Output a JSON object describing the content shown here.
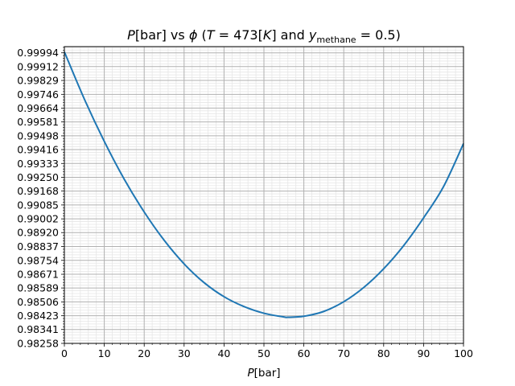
{
  "chart_data": {
    "type": "line",
    "title": "P[bar] vs φ (T = 473[K] and y_methane = 0.5)",
    "title_parts": {
      "p": "P",
      "bar": "[bar] vs ",
      "phi": "ϕ",
      "paren_open": " (",
      "t": "T",
      "t_eq": " = 473[",
      "k": "K",
      "k_close": "] and ",
      "y": "y",
      "y_sub": "methane",
      "y_eq": " = 0.5)"
    },
    "xlabel": "P[bar]",
    "xlabel_parts": {
      "p": "P",
      "unit": "[bar]"
    },
    "ylabel": "",
    "xlim": [
      0,
      100
    ],
    "ylim": [
      0.98258,
      1.00031
    ],
    "x_ticks": [
      0,
      10,
      20,
      30,
      40,
      50,
      60,
      70,
      80,
      90,
      100
    ],
    "y_ticks": [
      "0.99994",
      "0.99912",
      "0.99829",
      "0.99746",
      "0.99664",
      "0.99581",
      "0.99498",
      "0.99416",
      "0.99333",
      "0.99250",
      "0.99168",
      "0.99085",
      "0.99002",
      "0.98920",
      "0.98837",
      "0.98754",
      "0.98671",
      "0.98589",
      "0.98506",
      "0.98423",
      "0.98341",
      "0.98258"
    ],
    "grid": true,
    "series": [
      {
        "color": "#1f77b4",
        "x": [
          0,
          5,
          10,
          15,
          20,
          25,
          30,
          35,
          40,
          45,
          50,
          55,
          56,
          60,
          65,
          70,
          75,
          80,
          85,
          90,
          95,
          100
        ],
        "y": [
          1.0,
          0.99718,
          0.99465,
          0.99239,
          0.99043,
          0.98874,
          0.98733,
          0.98621,
          0.98537,
          0.98478,
          0.98438,
          0.98416,
          0.98414,
          0.9842,
          0.98449,
          0.98507,
          0.98592,
          0.98704,
          0.98842,
          0.99008,
          0.99195,
          0.99452
        ]
      }
    ]
  }
}
